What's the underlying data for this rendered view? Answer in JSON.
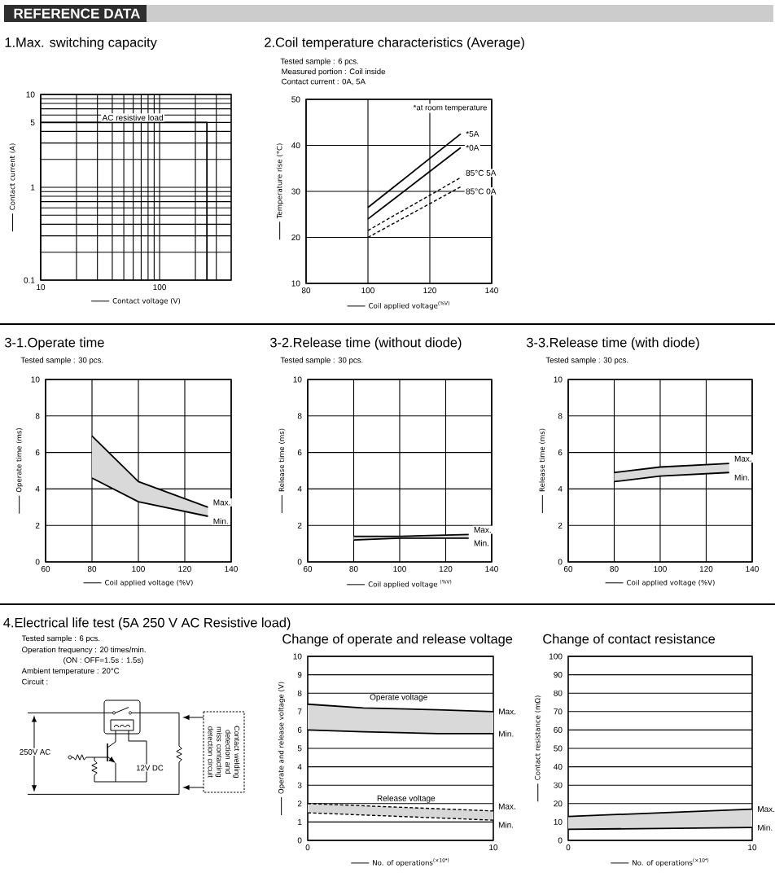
{
  "chart_data": [
    {
      "type": "other",
      "title": "REFERENCE DATA"
    },
    {
      "type": "line",
      "title": "1.Max. switching capacity",
      "xlabel": "Contact voltage (V)",
      "ylabel": "Contact current (A)",
      "log": "xy",
      "xlim": [
        10,
        400
      ],
      "ylim": [
        0.1,
        10
      ],
      "xticks": [
        10,
        100
      ],
      "yticks": [
        0.1,
        1,
        5,
        10
      ],
      "grid": true,
      "series": [
        {
          "name": "AC resistive load",
          "color": "#000000",
          "x": [
            10,
            250,
            250
          ],
          "values": [
            5,
            5,
            0.1
          ]
        }
      ]
    },
    {
      "type": "line",
      "title": "2.Coil temperature characteristics (Average)",
      "subtitle": "Tested sample : 6 pcs.",
      "annotations": [
        "Measured portion : Coil inside",
        "Contact current : 0A, 5A",
        "*at room temperature"
      ],
      "xlabel": "Coil applied voltage$^{(%V)}$",
      "ylabel": "Temperature rise (°C)",
      "xlim": [
        80,
        140
      ],
      "ylim": [
        10,
        50
      ],
      "xticks": [
        80,
        100,
        120,
        140
      ],
      "yticks": [
        10,
        20,
        30,
        40,
        50
      ],
      "grid": true,
      "x": [
        100,
        130
      ],
      "series": [
        {
          "name": "*5A",
          "color": "#000000",
          "values": [
            26.5,
            42.5
          ]
        },
        {
          "name": "*0A",
          "color": "#000000",
          "values": [
            24,
            39.5
          ]
        },
        {
          "name": "85°C 5A",
          "color": "#000000",
          "values": [
            21.5,
            33
          ],
          "line_style": "dashed"
        },
        {
          "name": "85°C 0A",
          "color": "#000000",
          "values": [
            20,
            31
          ],
          "line_style": "dashed"
        }
      ]
    },
    {
      "type": "line",
      "title": "3-1.Operate time",
      "subtitle": "Tested sample : 30 pcs.",
      "xlabel": "Coil applied voltage (%V)",
      "ylabel": "Operate time (ms)",
      "xlim": [
        60,
        140
      ],
      "ylim": [
        0,
        10
      ],
      "xticks": [
        60,
        80,
        100,
        120,
        140
      ],
      "yticks": [
        0,
        2,
        4,
        6,
        8,
        10
      ],
      "grid": true,
      "x": [
        80,
        100,
        130
      ],
      "series": [
        {
          "name": "Max.",
          "color": "#000000",
          "values": [
            6.9,
            4.4,
            3.0
          ],
          "lower": [
            4.6,
            3.3,
            2.5
          ],
          "upper": [
            6.9,
            4.4,
            3.0
          ]
        },
        {
          "name": "Min.",
          "color": "#000000",
          "values": [
            4.6,
            3.3,
            2.5
          ]
        }
      ]
    },
    {
      "type": "line",
      "title": "3-2.Release time (without diode)",
      "subtitle": "Tested sample : 30 pcs.",
      "xlabel": "Coil applied voltage $^{(%V)}$",
      "ylabel": "Release time (ms)",
      "xlim": [
        60,
        140
      ],
      "ylim": [
        0,
        10
      ],
      "xticks": [
        60,
        80,
        100,
        120,
        140
      ],
      "yticks": [
        0,
        2,
        4,
        6,
        8,
        10
      ],
      "grid": true,
      "x": [
        80,
        100,
        130
      ],
      "series": [
        {
          "name": "Max.",
          "color": "#000000",
          "values": [
            1.4,
            1.4,
            1.5
          ],
          "lower": [
            1.2,
            1.3,
            1.3
          ],
          "upper": [
            1.4,
            1.4,
            1.5
          ]
        },
        {
          "name": "Min.",
          "color": "#000000",
          "values": [
            1.2,
            1.3,
            1.3
          ]
        }
      ]
    },
    {
      "type": "line",
      "title": "3-3.Release time (with diode)",
      "subtitle": "Tested sample : 30 pcs.",
      "xlabel": "Coil applied voltage (%V)",
      "ylabel": "Release time (ms)",
      "xlim": [
        60,
        140
      ],
      "ylim": [
        0,
        10
      ],
      "xticks": [
        60,
        80,
        100,
        120,
        140
      ],
      "yticks": [
        0,
        2,
        4,
        6,
        8,
        10
      ],
      "grid": true,
      "x": [
        80,
        100,
        130
      ],
      "series": [
        {
          "name": "Max.",
          "color": "#000000",
          "values": [
            4.9,
            5.2,
            5.4
          ],
          "lower": [
            4.4,
            4.7,
            4.9
          ],
          "upper": [
            4.9,
            5.2,
            5.4
          ]
        },
        {
          "name": "Min.",
          "color": "#000000",
          "values": [
            4.4,
            4.7,
            4.9
          ]
        }
      ]
    },
    {
      "type": "other",
      "title": "4.Electrical life test (5A 250 V AC Resistive load)",
      "annotations": [
        "Tested sample : 6 pcs.",
        "Operation frequency : 20 times/min.",
        "(ON : OFF=1.5s : 1.5s)",
        "Ambient temperature : 20°C",
        "Circuit :",
        "250V AC",
        "12V DC",
        "Contact welding detection and miss contacting detection circuit"
      ]
    },
    {
      "type": "line",
      "title": "Change of operate and release voltage",
      "xlabel": "No. of operations$^{(×10⁴)}$",
      "ylabel": "Operate and release voltage (V)",
      "xlim": [
        0,
        10
      ],
      "ylim": [
        0,
        10
      ],
      "xticks": [
        0,
        10
      ],
      "yticks": [
        0,
        1,
        2,
        3,
        4,
        5,
        6,
        7,
        8,
        9,
        10
      ],
      "grid": "y",
      "annotations": [
        "Operate voltage",
        "Release voltage"
      ],
      "series": [
        {
          "name": "Max.",
          "color": "#000000",
          "x": [
            0,
            3,
            7,
            10
          ],
          "values": [
            7.4,
            7.2,
            7.1,
            7.0
          ],
          "lower": [
            6.0,
            5.9,
            5.8,
            5.8
          ],
          "upper": [
            7.4,
            7.2,
            7.1,
            7.0
          ]
        },
        {
          "name": "Min.",
          "color": "#000000",
          "x": [
            0,
            3,
            7,
            10
          ],
          "values": [
            6.0,
            5.9,
            5.8,
            5.8
          ]
        },
        {
          "name": "Max.",
          "color": "#000000",
          "x": [
            0,
            10
          ],
          "values": [
            2.0,
            1.6
          ],
          "line_style": "dashed",
          "lower": [
            1.5,
            1.1
          ],
          "upper": [
            2.0,
            1.6
          ]
        },
        {
          "name": "Min.",
          "color": "#000000",
          "x": [
            0,
            10
          ],
          "values": [
            1.5,
            1.1
          ],
          "line_style": "dashed"
        }
      ]
    },
    {
      "type": "line",
      "title": "Change of contact resistance",
      "xlabel": "No. of operations$^{(×10⁴)}$",
      "ylabel": "Contact resistance (mΩ)",
      "xlim": [
        0,
        10
      ],
      "ylim": [
        0,
        100
      ],
      "xticks": [
        0,
        10
      ],
      "yticks": [
        0,
        10,
        20,
        30,
        40,
        50,
        60,
        70,
        80,
        90,
        100
      ],
      "grid": "y",
      "x": [
        0,
        10
      ],
      "series": [
        {
          "name": "Max.",
          "color": "#000000",
          "values": [
            13,
            17
          ],
          "lower": [
            6,
            7
          ],
          "upper": [
            13,
            17
          ]
        },
        {
          "name": "Min.",
          "color": "#000000",
          "values": [
            6,
            7
          ]
        }
      ]
    }
  ]
}
